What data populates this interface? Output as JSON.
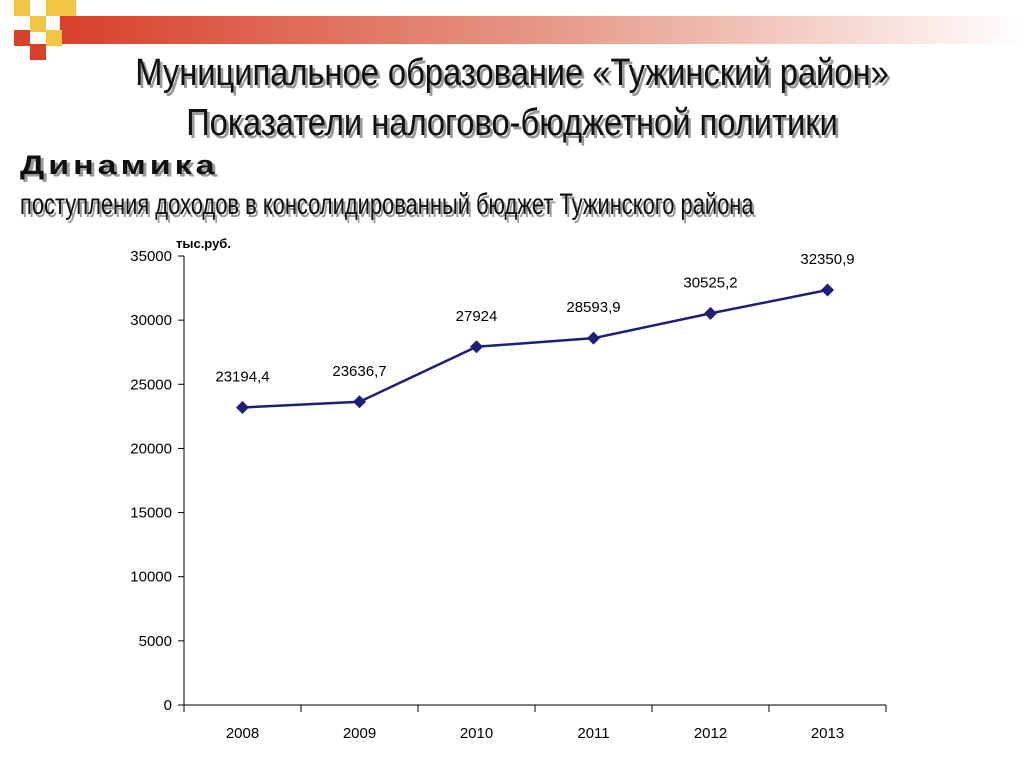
{
  "slide": {
    "title_line1": "Муниципальное образование «Тужинский район»",
    "title_line2": "Показатели налогово-бюджетной политики",
    "subtitle_line1": "Динамика",
    "subtitle_line2": "поступления доходов в консолидированный бюджет Тужинского района",
    "accent_color": "#d8402a"
  },
  "chart_data": {
    "type": "line",
    "unit_label": "тыс.руб.",
    "categories": [
      "2008",
      "2009",
      "2010",
      "2011",
      "2012",
      "2013"
    ],
    "values": [
      23194.4,
      23636.7,
      27924,
      28593.9,
      30525.2,
      32350.9
    ],
    "data_labels": [
      "23194,4",
      "23636,7",
      "27924",
      "28593,9",
      "30525,2",
      "32350,9"
    ],
    "ylim": [
      0,
      35000
    ],
    "yticks": [
      "0",
      "5000",
      "10000",
      "15000",
      "20000",
      "25000",
      "30000",
      "35000"
    ],
    "line_color": "#1f1f7a",
    "grid": false,
    "legend": "none"
  }
}
